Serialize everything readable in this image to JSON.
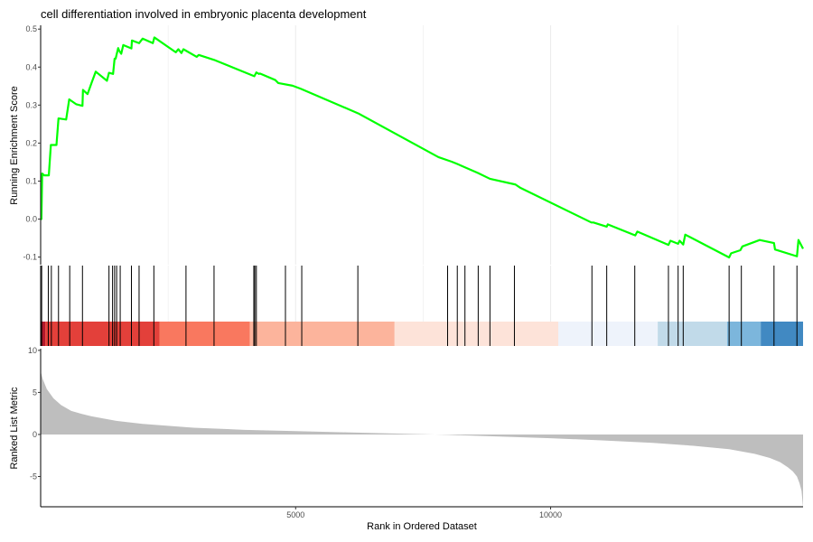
{
  "chart_data": {
    "type": "line",
    "title": "cell differentiation involved in embryonic placenta development",
    "xlabel": "Rank in Ordered Dataset",
    "x_ticks": [
      5000,
      10000
    ],
    "xlim": [
      0,
      14950
    ],
    "grid": "major vertical gridlines on top two panels, none on bottom panel",
    "enrichment_panel": {
      "ylabel": "Running Enrichment Score",
      "ylim": [
        -0.12,
        0.51
      ],
      "y_ticks": [
        -0.1,
        0.0,
        0.1,
        0.2,
        0.3,
        0.4,
        0.5
      ],
      "line_color": "#00FF00",
      "series": [
        {
          "x": [
            0,
            15,
            30,
            70,
            160,
            200,
            310,
            350,
            500,
            560,
            700,
            820,
            830,
            920,
            1000,
            1080,
            1300,
            1340,
            1420,
            1450,
            1470,
            1520,
            1540,
            1580,
            1620,
            1780,
            1790,
            1930,
            2000,
            2200,
            2230,
            2650,
            2700,
            2760,
            2800,
            3060,
            3100,
            3400,
            4190,
            4230,
            4280,
            4300,
            4600,
            4660,
            4940,
            5100,
            6230,
            7800,
            8060,
            8170,
            8580,
            8810,
            9310,
            9410,
            10800,
            10840,
            11100,
            11120,
            11660,
            11700,
            12310,
            12350,
            12500,
            12530,
            12600,
            12640,
            13500,
            13540,
            13720,
            13760,
            14100,
            14380,
            14400,
            14830,
            14860,
            14950
          ],
          "y": [
            0.0,
            0.0,
            0.12,
            0.115,
            0.115,
            0.195,
            0.195,
            0.265,
            0.262,
            0.315,
            0.302,
            0.298,
            0.34,
            0.329,
            0.359,
            0.388,
            0.364,
            0.385,
            0.382,
            0.422,
            0.422,
            0.45,
            0.443,
            0.435,
            0.458,
            0.449,
            0.47,
            0.463,
            0.475,
            0.463,
            0.478,
            0.439,
            0.447,
            0.437,
            0.447,
            0.427,
            0.432,
            0.419,
            0.376,
            0.386,
            0.382,
            0.383,
            0.366,
            0.358,
            0.351,
            0.343,
            0.278,
            0.163,
            0.151,
            0.145,
            0.121,
            0.106,
            0.091,
            0.082,
            -0.009,
            -0.009,
            -0.02,
            -0.014,
            -0.043,
            -0.033,
            -0.068,
            -0.057,
            -0.065,
            -0.057,
            -0.067,
            -0.041,
            -0.101,
            -0.09,
            -0.082,
            -0.072,
            -0.055,
            -0.063,
            -0.08,
            -0.098,
            -0.055,
            -0.078
          ]
        }
      ]
    },
    "hits_panel": {
      "hit_ranks": [
        20,
        150,
        210,
        350,
        570,
        820,
        1340,
        1410,
        1450,
        1490,
        1560,
        1780,
        1930,
        2220,
        2850,
        3400,
        4180,
        4200,
        4230,
        4800,
        5120,
        6220,
        7980,
        8170,
        8320,
        8580,
        8810,
        9290,
        10810,
        11100,
        11650,
        12310,
        12500,
        12600,
        13500,
        13740,
        14380,
        14830
      ],
      "rank_color_bands": [
        {
          "from": 0,
          "to": 90,
          "color": "#B2182B"
        },
        {
          "from": 90,
          "to": 2330,
          "color": "#E3403A"
        },
        {
          "from": 2330,
          "to": 4100,
          "color": "#F9785F"
        },
        {
          "from": 4100,
          "to": 6940,
          "color": "#FCB49C"
        },
        {
          "from": 6940,
          "to": 10150,
          "color": "#FDE3D9"
        },
        {
          "from": 10150,
          "to": 12100,
          "color": "#EEF3FB"
        },
        {
          "from": 12100,
          "to": 13460,
          "color": "#C1DAE9"
        },
        {
          "from": 13460,
          "to": 14120,
          "color": "#7CB6DC"
        },
        {
          "from": 14120,
          "to": 14950,
          "color": "#4189C2"
        }
      ]
    },
    "ranked_metric_panel": {
      "ylabel": "Ranked List Metric",
      "ylim": [
        -8.6,
        10.2
      ],
      "y_ticks": [
        -5,
        0,
        5,
        10
      ],
      "fill_color": "#BEBEBE",
      "x": [
        0,
        40,
        120,
        250,
        400,
        600,
        800,
        1000,
        1500,
        2000,
        3000,
        4000,
        5000,
        6000,
        7000,
        8000,
        9000,
        10000,
        11000,
        12000,
        12800,
        13500,
        14000,
        14300,
        14500,
        14650,
        14750,
        14830,
        14880,
        14920,
        14950
      ],
      "values": [
        7.5,
        6.6,
        5.4,
        4.3,
        3.5,
        2.8,
        2.45,
        2.15,
        1.6,
        1.25,
        0.8,
        0.55,
        0.4,
        0.25,
        0.1,
        -0.05,
        -0.25,
        -0.45,
        -0.7,
        -1.0,
        -1.35,
        -1.75,
        -2.3,
        -2.8,
        -3.3,
        -3.9,
        -4.4,
        -5.0,
        -5.8,
        -6.7,
        -8.7
      ]
    }
  }
}
